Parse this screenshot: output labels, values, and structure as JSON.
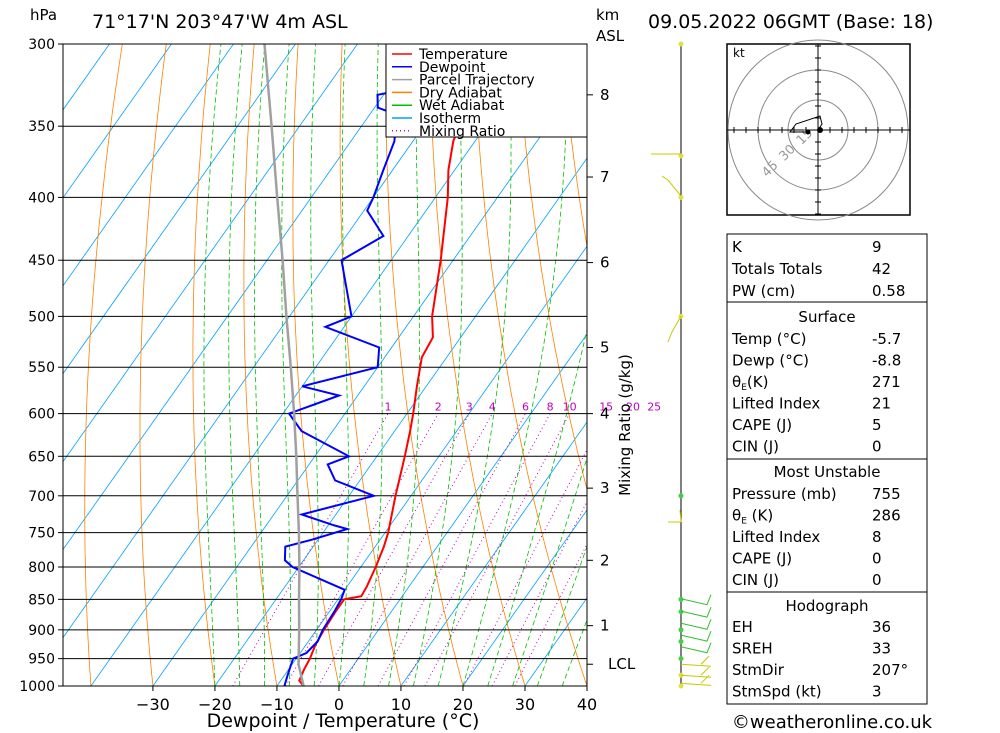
{
  "header": {
    "hpa_label": "hPa",
    "location": "71°17'N  203°47'W  4m  ASL",
    "km_label": "km",
    "asl_label": "ASL",
    "datetime": "09.05.2022  06GMT  (Base: 18)"
  },
  "chart_data": {
    "type": "line",
    "subtype": "skew-t log-p",
    "xlabel": "Dewpoint / Temperature (°C)",
    "ylabel_right": "Mixing Ratio (g/kg)",
    "xlim": [
      -40,
      40
    ],
    "pressure_range": [
      300,
      1000
    ],
    "log_pressure_axis": true,
    "x_ticks": [
      -30,
      -20,
      -10,
      0,
      10,
      20,
      30,
      40
    ],
    "pressure_ticks": [
      300,
      350,
      400,
      450,
      500,
      550,
      600,
      650,
      700,
      750,
      800,
      850,
      900,
      950,
      1000
    ],
    "km_ticks": [
      {
        "label": "8",
        "p": 330
      },
      {
        "label": "7",
        "p": 385
      },
      {
        "label": "6",
        "p": 452
      },
      {
        "label": "5",
        "p": 530
      },
      {
        "label": "4",
        "p": 600
      },
      {
        "label": "3",
        "p": 690
      },
      {
        "label": "2",
        "p": 790
      },
      {
        "label": "1",
        "p": 893
      },
      {
        "label": "LCL",
        "p": 960
      }
    ],
    "mixing_ratio_labels": [
      "1",
      "2",
      "3",
      "4",
      "6",
      "8",
      "10",
      "15",
      "20",
      "25"
    ],
    "legend": {
      "position": "top-right",
      "entries": [
        {
          "name": "Temperature",
          "color": "#ff0000",
          "style": "solid"
        },
        {
          "name": "Dewpoint",
          "color": "#0000ff",
          "style": "solid"
        },
        {
          "name": "Parcel Trajectory",
          "color": "#a0a0a0",
          "style": "solid"
        },
        {
          "name": "Dry Adiabat",
          "color": "#ff8000",
          "style": "solid"
        },
        {
          "name": "Wet Adiabat",
          "color": "#00c000",
          "style": "solid"
        },
        {
          "name": "Isotherm",
          "color": "#00a0ff",
          "style": "solid"
        },
        {
          "name": "Mixing Ratio",
          "color": "#c000c0",
          "style": "dotted"
        }
      ]
    },
    "series": [
      {
        "name": "Temperature",
        "color": "#ff0000",
        "points": [
          [
            1000,
            -5.7
          ],
          [
            990,
            -7
          ],
          [
            970,
            -7.5
          ],
          [
            950,
            -7.8
          ],
          [
            925,
            -8.5
          ],
          [
            900,
            -8.8
          ],
          [
            870,
            -9
          ],
          [
            850,
            -9
          ],
          [
            845,
            -6.6
          ],
          [
            830,
            -6.8
          ],
          [
            800,
            -7.6
          ],
          [
            770,
            -8.6
          ],
          [
            750,
            -9.5
          ],
          [
            700,
            -12.5
          ],
          [
            650,
            -15.5
          ],
          [
            620,
            -17.5
          ],
          [
            600,
            -19
          ],
          [
            570,
            -21.5
          ],
          [
            540,
            -24
          ],
          [
            520,
            -24.5
          ],
          [
            500,
            -27
          ],
          [
            450,
            -32
          ],
          [
            400,
            -38
          ],
          [
            380,
            -41
          ],
          [
            360,
            -43.5
          ],
          [
            340,
            -45
          ],
          [
            330,
            -45
          ],
          [
            310,
            -46
          ],
          [
            300,
            -47
          ]
        ]
      },
      {
        "name": "Dewpoint",
        "color": "#0000ff",
        "points": [
          [
            1000,
            -8.8
          ],
          [
            980,
            -9.5
          ],
          [
            950,
            -10.5
          ],
          [
            940,
            -9
          ],
          [
            920,
            -8.5
          ],
          [
            900,
            -9
          ],
          [
            870,
            -9.2
          ],
          [
            850,
            -9.5
          ],
          [
            835,
            -10
          ],
          [
            800,
            -21
          ],
          [
            790,
            -23
          ],
          [
            770,
            -24.5
          ],
          [
            760,
            -21
          ],
          [
            745,
            -16.5
          ],
          [
            740,
            -19
          ],
          [
            725,
            -25.5
          ],
          [
            700,
            -16
          ],
          [
            680,
            -24
          ],
          [
            660,
            -27
          ],
          [
            650,
            -24.5
          ],
          [
            620,
            -35
          ],
          [
            600,
            -39
          ],
          [
            580,
            -33
          ],
          [
            570,
            -40
          ],
          [
            550,
            -30
          ],
          [
            530,
            -32
          ],
          [
            510,
            -43
          ],
          [
            500,
            -40
          ],
          [
            450,
            -48
          ],
          [
            430,
            -44
          ],
          [
            410,
            -49.5
          ],
          [
            400,
            -50
          ],
          [
            380,
            -51.5
          ],
          [
            360,
            -53
          ],
          [
            350,
            -54.5
          ],
          [
            345,
            -53.5
          ],
          [
            338,
            -59.5
          ],
          [
            330,
            -61
          ],
          [
            322,
            -51
          ],
          [
            305,
            -52.5
          ],
          [
            300,
            -53.5
          ]
        ]
      },
      {
        "name": "Parcel Trajectory",
        "color": "#a0a0a0",
        "points": [
          [
            1000,
            -5.7
          ],
          [
            960,
            -9
          ],
          [
            900,
            -12.8
          ],
          [
            850,
            -16.3
          ],
          [
            800,
            -19.9
          ],
          [
            750,
            -23.9
          ],
          [
            700,
            -28.3
          ],
          [
            650,
            -33
          ],
          [
            600,
            -38.2
          ],
          [
            550,
            -44
          ],
          [
            500,
            -50.5
          ],
          [
            450,
            -57.5
          ],
          [
            400,
            -65.5
          ],
          [
            350,
            -74.5
          ],
          [
            300,
            -85
          ]
        ]
      }
    ]
  },
  "hodograph": {
    "unit_label": "kt",
    "ring_labels": [
      "15",
      "30",
      "45"
    ]
  },
  "indices": {
    "k_label": "K",
    "k_value": "9",
    "tt_label": "Totals Totals",
    "tt_value": "42",
    "pw_label": "PW (cm)",
    "pw_value": "0.58"
  },
  "surface": {
    "title": "Surface",
    "rows": [
      {
        "label": "Temp (°C)",
        "value": "-5.7"
      },
      {
        "label": "Dewp (°C)",
        "value": "-8.8"
      },
      {
        "label_main": "θ",
        "label_sub": "E",
        "label_rest": "(K)",
        "value": "271"
      },
      {
        "label": "Lifted Index",
        "value": "21"
      },
      {
        "label": "CAPE (J)",
        "value": "5"
      },
      {
        "label": "CIN (J)",
        "value": "0"
      }
    ]
  },
  "most_unstable": {
    "title": "Most Unstable",
    "rows": [
      {
        "label": "Pressure (mb)",
        "value": "755"
      },
      {
        "label_main": "θ",
        "label_sub": "E",
        "label_rest": " (K)",
        "value": "286"
      },
      {
        "label": "Lifted Index",
        "value": "8"
      },
      {
        "label": "CAPE (J)",
        "value": "0"
      },
      {
        "label": "CIN (J)",
        "value": "0"
      }
    ]
  },
  "hodograph_table": {
    "title": "Hodograph",
    "rows": [
      {
        "label": "EH",
        "value": "36"
      },
      {
        "label": "SREH",
        "value": "33"
      },
      {
        "label": "StmDir",
        "value": "207°"
      },
      {
        "label": "StmSpd (kt)",
        "value": "3"
      }
    ]
  },
  "footer": {
    "copyright": "©weatheronline.co.uk"
  }
}
